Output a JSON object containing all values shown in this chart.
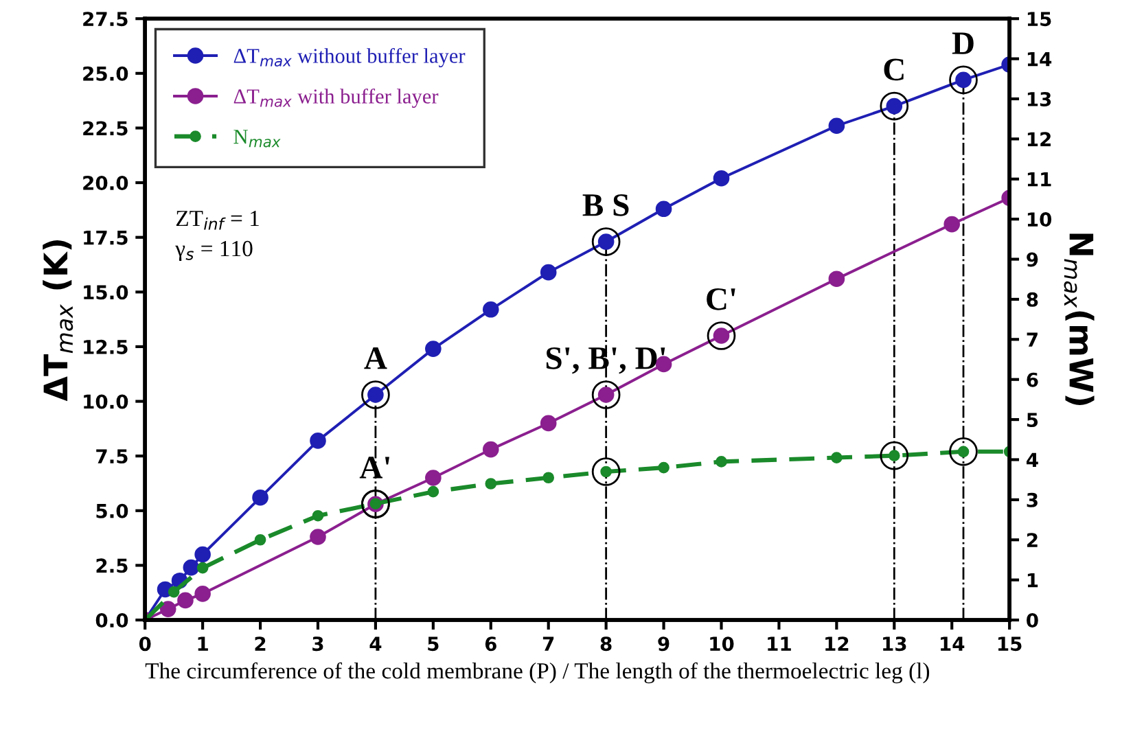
{
  "chart_data": {
    "type": "line",
    "xlabel": "The circumference of the cold membrane (P) / The length of the thermoelectric leg (l)",
    "ylabel": "ΔT$_{max}$ (K)",
    "y2label": "N$_{max}$(mW)",
    "xlim": [
      0,
      15
    ],
    "xticks": [
      0,
      1,
      2,
      3,
      4,
      5,
      6,
      7,
      8,
      9,
      10,
      11,
      12,
      13,
      14,
      15
    ],
    "ylim": [
      0.0,
      27.5
    ],
    "yticks": [
      {
        "value": 0,
        "label": "0.0"
      },
      2.5,
      {
        "value": 5,
        "label": "5.0"
      },
      7.5,
      {
        "value": 10,
        "label": "10.0"
      },
      12.5,
      {
        "value": 15,
        "label": "15.0"
      },
      17.5,
      {
        "value": 20,
        "label": "20.0"
      },
      22.5,
      {
        "value": 25,
        "label": "25.0"
      },
      27.5
    ],
    "y2lim": [
      0,
      15
    ],
    "y2ticks": [
      0,
      1,
      2,
      3,
      4,
      5,
      6,
      7,
      8,
      9,
      10,
      11,
      12,
      13,
      14,
      15
    ],
    "grid": false,
    "legend": "top left",
    "marker": "circle",
    "series": [
      {
        "name": "ΔT$_{max}$ without buffer layer",
        "color": "#1f1fb4",
        "line_style": "solid",
        "x": [
          0,
          0.35,
          0.6,
          0.8,
          1,
          2,
          3,
          4,
          5,
          6,
          7,
          8,
          9,
          10,
          12,
          13,
          14.2,
          15
        ],
        "values": [
          0,
          1.4,
          1.8,
          2.4,
          3.0,
          5.6,
          8.2,
          10.3,
          12.4,
          14.2,
          15.9,
          17.3,
          18.8,
          20.2,
          22.6,
          23.5,
          24.7,
          25.4
        ]
      },
      {
        "name": "ΔT$_{max}$ with buffer layer",
        "color": "#8b1f8f",
        "line_style": "solid",
        "x": [
          0,
          0.4,
          0.7,
          1,
          3,
          4,
          5,
          6,
          7,
          8,
          9,
          10,
          12,
          14,
          15
        ],
        "values": [
          0,
          0.5,
          0.9,
          1.2,
          3.8,
          5.3,
          6.5,
          7.8,
          9.0,
          10.3,
          11.7,
          13.0,
          15.6,
          18.1,
          19.3
        ]
      },
      {
        "name": "N$_{max}$",
        "color": "#1a8a2a",
        "line_style": "dashed",
        "axis": "y2",
        "x": [
          0,
          0.5,
          1,
          2,
          3,
          4,
          5,
          6,
          7,
          8,
          9,
          10,
          12,
          13,
          14.2,
          15
        ],
        "values": [
          0,
          0.7,
          1.3,
          2.0,
          2.6,
          2.9,
          3.2,
          3.4,
          3.55,
          3.7,
          3.8,
          3.95,
          4.05,
          4.1,
          4.2,
          4.2
        ]
      }
    ],
    "ref_lines": [
      {
        "axis": "x",
        "value": 4,
        "line_style": "dashdot",
        "color": "#000000"
      },
      {
        "axis": "x",
        "value": 8,
        "line_style": "dashdot",
        "color": "#000000"
      },
      {
        "axis": "x",
        "value": 13,
        "line_style": "dashdot",
        "color": "#000000"
      },
      {
        "axis": "x",
        "value": 14.2,
        "line_style": "dashdot",
        "color": "#000000"
      }
    ],
    "annotations": [
      {
        "text": "A",
        "x": 4,
        "y": 10.3
      },
      {
        "text": "B S",
        "x": 8,
        "y": 17.3
      },
      {
        "text": "C",
        "x": 13,
        "y": 23.5
      },
      {
        "text": "D",
        "x": 14.2,
        "y": 24.7
      },
      {
        "text": "A'",
        "x": 4,
        "y": 5.3
      },
      {
        "text": "S', B', D'",
        "x": 8,
        "y": 10.3
      },
      {
        "text": "C'",
        "x": 10,
        "y": 13.0
      },
      "ZT$_{inf}$ = 1",
      "γ$_{s}$ = 110"
    ]
  }
}
